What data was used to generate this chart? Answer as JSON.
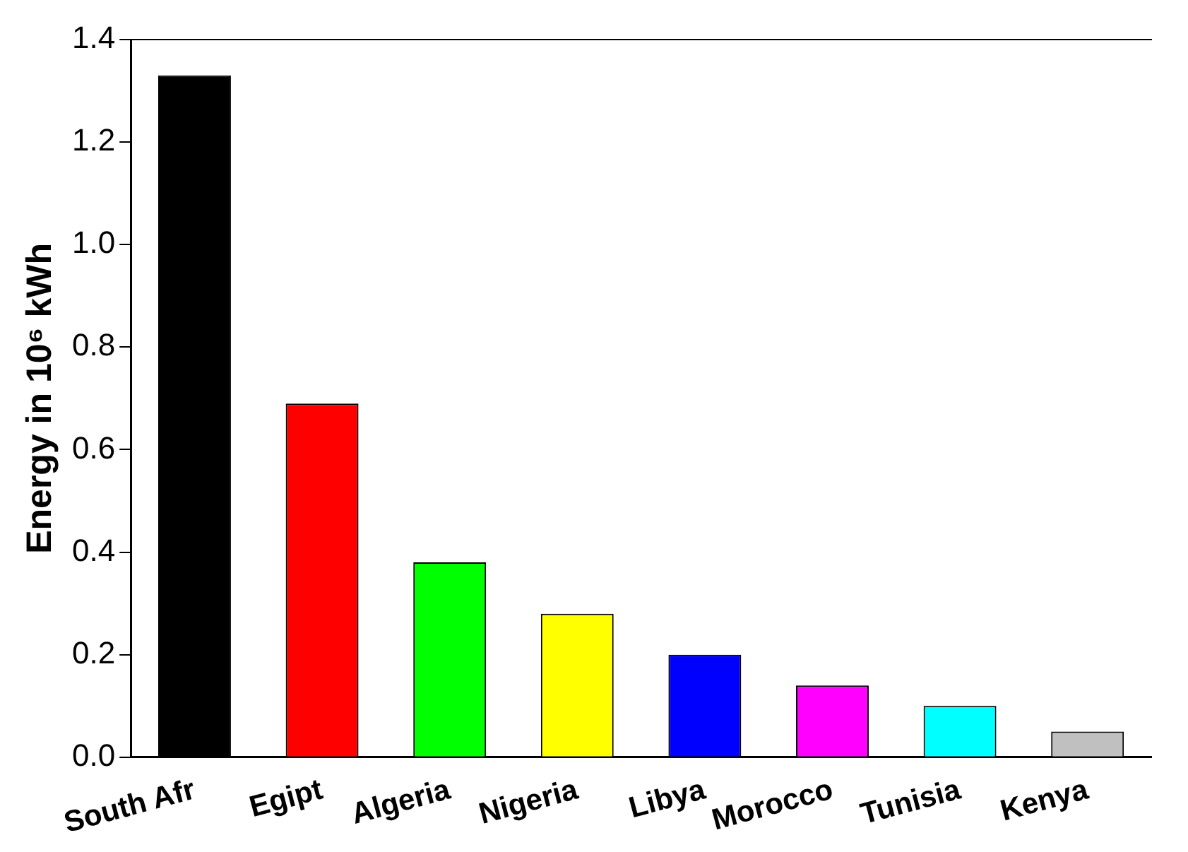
{
  "chart_data": {
    "type": "bar",
    "ylabel": "Energy in 10⁶ kWh",
    "categories": [
      "South Afr",
      "Egipt",
      "Algeria",
      "Nigeria",
      "Libya",
      "Morocco",
      "Tunisia",
      "Kenya"
    ],
    "values": [
      1.33,
      0.69,
      0.38,
      0.28,
      0.2,
      0.14,
      0.1,
      0.05
    ],
    "colors": [
      "#000000",
      "#ff0000",
      "#00ff00",
      "#ffff00",
      "#0000ff",
      "#ff00ff",
      "#00ffff",
      "#c0c0c0"
    ],
    "ylim": [
      0,
      1.4
    ],
    "yticks": [
      {
        "value": 0,
        "label": "0.0"
      },
      0.2,
      0.4,
      0.6,
      0.8,
      {
        "value": 1,
        "label": "1.0"
      },
      1.2,
      1.4
    ],
    "grid": false,
    "legend": false
  }
}
